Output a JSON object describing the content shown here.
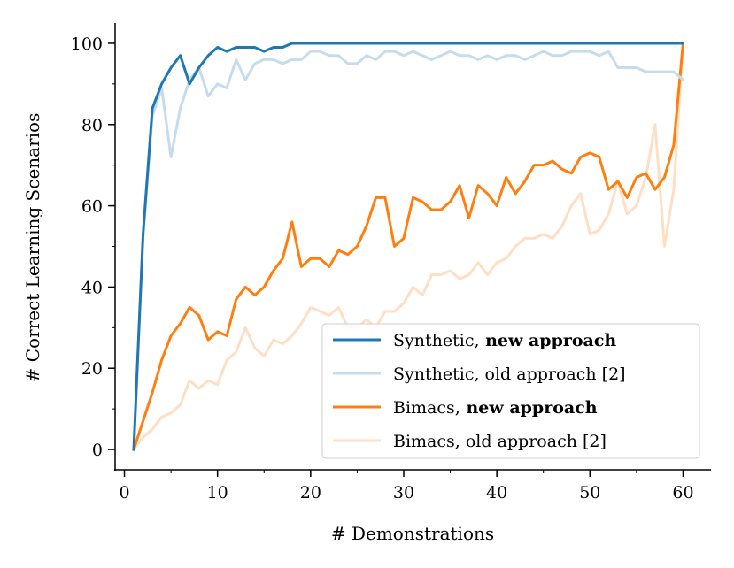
{
  "chart_data": {
    "type": "line",
    "xlabel": "# Demonstrations",
    "ylabel": "# Correct Learning Scenarios",
    "xlim": [
      -1,
      63
    ],
    "ylim": [
      -5,
      105
    ],
    "xticks": [
      "0",
      "10",
      "20",
      "30",
      "40",
      "50",
      "60"
    ],
    "yticks": [
      "0",
      "20",
      "40",
      "60",
      "80",
      "100"
    ],
    "grid": false,
    "legend_position": "bottom-right",
    "x": [
      1,
      2,
      3,
      4,
      5,
      6,
      7,
      8,
      9,
      10,
      11,
      12,
      13,
      14,
      15,
      16,
      17,
      18,
      19,
      20,
      21,
      22,
      23,
      24,
      25,
      26,
      27,
      28,
      29,
      30,
      31,
      32,
      33,
      34,
      35,
      36,
      37,
      38,
      39,
      40,
      41,
      42,
      43,
      44,
      45,
      46,
      47,
      48,
      49,
      50,
      51,
      52,
      53,
      54,
      55,
      56,
      57,
      58,
      59,
      60
    ],
    "series": [
      {
        "name": "Synthetic,",
        "name_bold": "new approach",
        "color": "#1f77b4",
        "values": [
          0,
          53,
          84,
          90,
          94,
          97,
          90,
          94,
          97,
          99,
          98,
          99,
          99,
          99,
          98,
          99,
          99,
          100,
          100,
          100,
          100,
          100,
          100,
          100,
          100,
          100,
          100,
          100,
          100,
          100,
          100,
          100,
          100,
          100,
          100,
          100,
          100,
          100,
          100,
          100,
          100,
          100,
          100,
          100,
          100,
          100,
          100,
          100,
          100,
          100,
          100,
          100,
          100,
          100,
          100,
          100,
          100,
          100,
          100,
          100
        ]
      },
      {
        "name": "Synthetic, old approach [2]",
        "name_bold": "",
        "color": "#c6dcec",
        "values": [
          0,
          52,
          82,
          89,
          72,
          84,
          91,
          94,
          87,
          90,
          89,
          96,
          91,
          95,
          96,
          96,
          95,
          96,
          96,
          98,
          98,
          97,
          97,
          95,
          95,
          97,
          96,
          98,
          98,
          97,
          98,
          97,
          96,
          97,
          98,
          97,
          97,
          96,
          97,
          96,
          97,
          97,
          96,
          97,
          98,
          97,
          97,
          98,
          98,
          98,
          97,
          98,
          94,
          94,
          94,
          93,
          93,
          93,
          93,
          91
        ]
      },
      {
        "name": "Bimacs,",
        "name_bold": "new approach",
        "color": "#ff7f0e",
        "values": [
          0,
          7,
          14,
          22,
          28,
          31,
          35,
          33,
          27,
          29,
          28,
          37,
          40,
          38,
          40,
          44,
          47,
          56,
          45,
          47,
          47,
          45,
          49,
          48,
          50,
          55,
          62,
          62,
          50,
          52,
          62,
          61,
          59,
          59,
          61,
          65,
          57,
          65,
          63,
          60,
          67,
          63,
          66,
          70,
          70,
          71,
          69,
          68,
          72,
          73,
          72,
          64,
          66,
          62,
          67,
          68,
          64,
          67,
          75,
          100
        ]
      },
      {
        "name": "Bimacs, old approach [2]",
        "name_bold": "",
        "color": "#ffdfc3",
        "values": [
          0,
          3,
          5,
          8,
          9,
          11,
          17,
          15,
          17,
          16,
          22,
          24,
          30,
          25,
          23,
          27,
          26,
          28,
          31,
          35,
          34,
          33,
          35,
          30,
          30,
          32,
          30,
          34,
          34,
          36,
          40,
          38,
          43,
          43,
          44,
          42,
          43,
          46,
          43,
          46,
          47,
          50,
          52,
          52,
          53,
          52,
          55,
          60,
          63,
          53,
          54,
          58,
          66,
          58,
          60,
          67,
          80,
          50,
          64,
          100
        ]
      }
    ]
  }
}
